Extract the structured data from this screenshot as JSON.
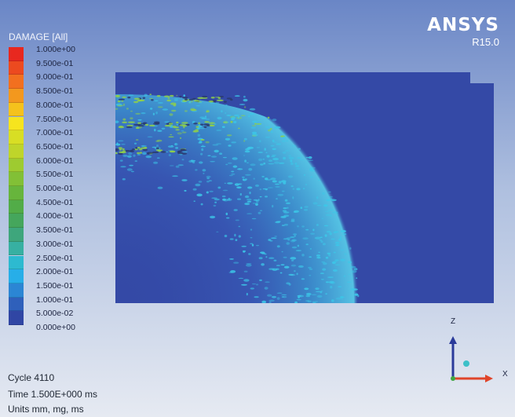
{
  "legend": {
    "title": "DAMAGE [All]",
    "entries": [
      {
        "label": "1.000e+00",
        "color": "#e8281f"
      },
      {
        "label": "9.500e-01",
        "color": "#ec4a1f"
      },
      {
        "label": "9.000e-01",
        "color": "#f2701f"
      },
      {
        "label": "8.500e-01",
        "color": "#f3981e"
      },
      {
        "label": "8.000e-01",
        "color": "#f5c21c"
      },
      {
        "label": "7.500e-01",
        "color": "#f6e41e"
      },
      {
        "label": "7.000e-01",
        "color": "#d8de24"
      },
      {
        "label": "6.500e-01",
        "color": "#bfd52a"
      },
      {
        "label": "6.000e-01",
        "color": "#9ecb30"
      },
      {
        "label": "5.500e-01",
        "color": "#82c036"
      },
      {
        "label": "5.000e-01",
        "color": "#67b53c"
      },
      {
        "label": "4.500e-01",
        "color": "#52ac48"
      },
      {
        "label": "4.000e-01",
        "color": "#45a65c"
      },
      {
        "label": "3.500e-01",
        "color": "#3ea67c"
      },
      {
        "label": "3.000e-01",
        "color": "#37b0a2"
      },
      {
        "label": "2.500e-01",
        "color": "#2dbad0"
      },
      {
        "label": "2.000e-01",
        "color": "#27aee8"
      },
      {
        "label": "1.500e-01",
        "color": "#2b86d4"
      },
      {
        "label": "1.000e-01",
        "color": "#2f60bb"
      },
      {
        "label": "5.000e-02",
        "color": "#3046a4"
      },
      {
        "label": "0.000e+00",
        "color": "#2f3f95"
      }
    ]
  },
  "brand": {
    "name": "ANSYS",
    "version": "R15.0"
  },
  "info": {
    "cycle": "Cycle 4110",
    "time": "Time 1.500E+000 ms",
    "units": "Units mm, mg, ms"
  },
  "triad": {
    "z_label": "Z",
    "x_label": "X",
    "z_color": "#2a3a9a",
    "x_color": "#e0452a",
    "origin_color": "#3fa642",
    "y_color": "#3cc0c8"
  },
  "model": {
    "base_color": "#3449a6",
    "damage_color": "#3cc7e8",
    "high_damage_color": "#8fd04a"
  }
}
